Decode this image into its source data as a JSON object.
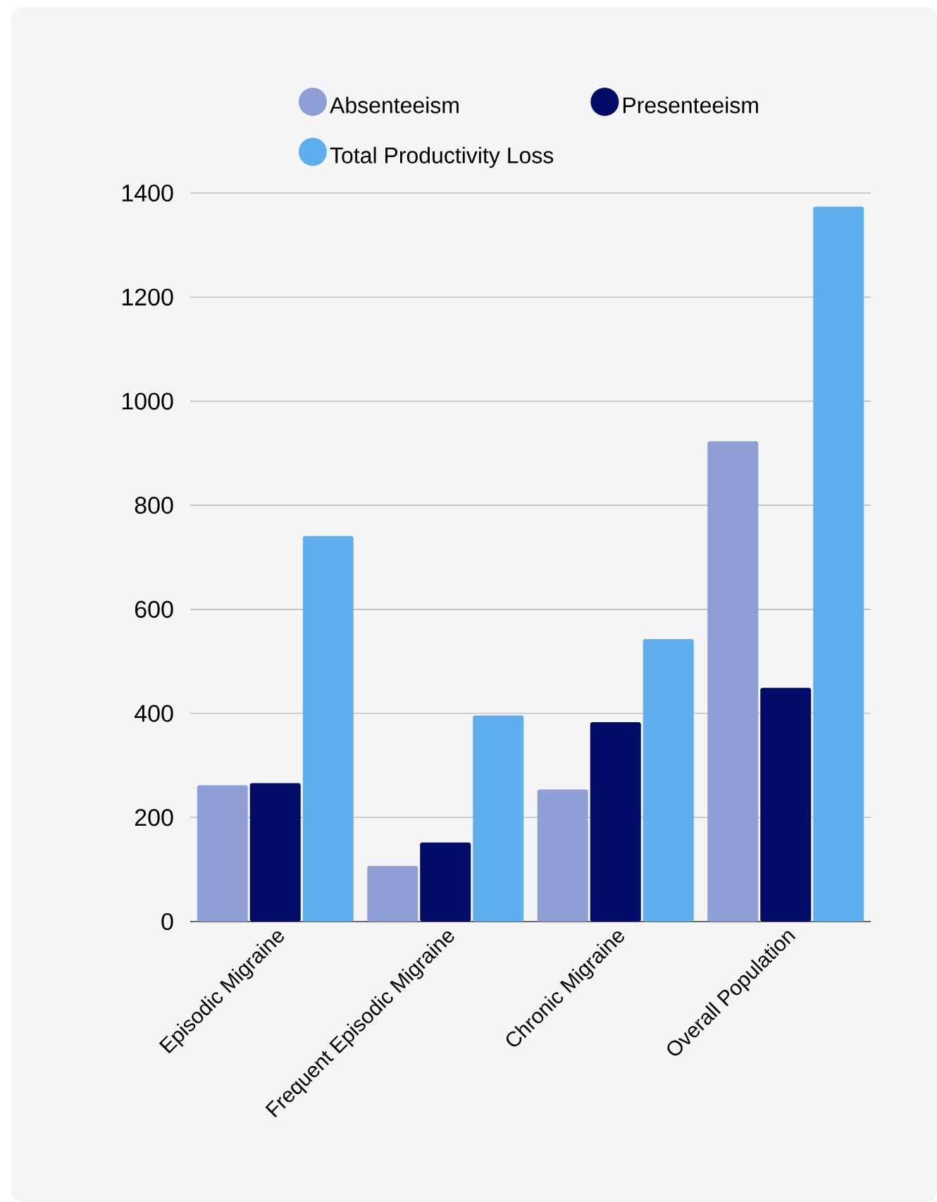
{
  "chart_data": {
    "type": "bar",
    "categories": [
      "Episodic Migraine",
      "Frequent Episodic Migraine",
      "Chronic Migraine",
      "Overall Population"
    ],
    "series": [
      {
        "name": "Absenteeism",
        "color": "#8e9fd5",
        "values": [
          262,
          107,
          254,
          923
        ]
      },
      {
        "name": "Presenteeism",
        "color": "#000c66",
        "values": [
          266,
          152,
          383,
          449
        ]
      },
      {
        "name": "Total Productivity Loss",
        "color": "#5fafee",
        "values": [
          741,
          396,
          543,
          1374
        ]
      }
    ],
    "ylim": [
      0,
      1400
    ],
    "yticks": [
      0,
      200,
      400,
      600,
      800,
      1000,
      1200,
      1400
    ],
    "grid": "y",
    "legend": "top"
  }
}
